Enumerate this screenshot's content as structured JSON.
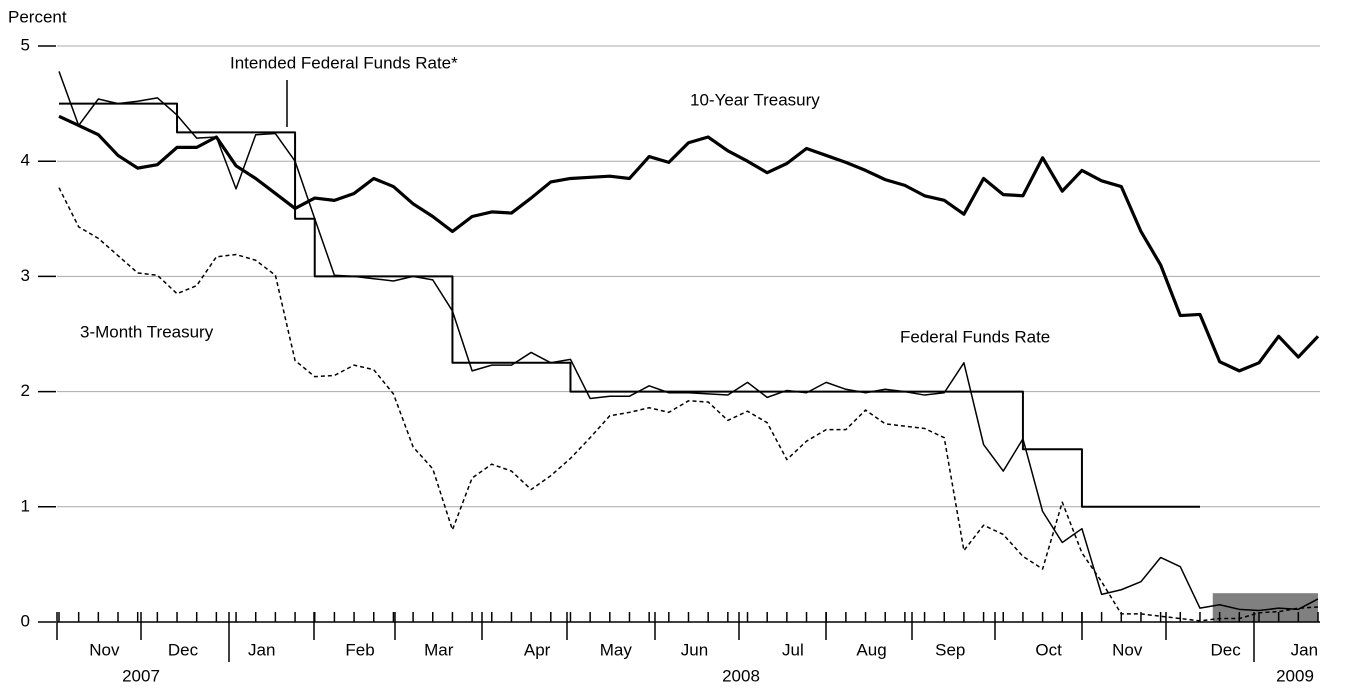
{
  "chart_data": {
    "type": "line",
    "y_label": "Percent",
    "categories": [
      null,
      null,
      "Nov",
      null,
      null,
      null,
      "Dec",
      null,
      null,
      null,
      "Jan",
      null,
      null,
      null,
      null,
      "Feb",
      null,
      null,
      null,
      "Mar",
      null,
      null,
      null,
      null,
      "Apr",
      null,
      null,
      null,
      "May",
      null,
      null,
      null,
      "Jun",
      null,
      null,
      null,
      null,
      "Jul",
      null,
      null,
      null,
      "Aug",
      null,
      null,
      null,
      "Sep",
      null,
      null,
      null,
      null,
      "Oct",
      null,
      null,
      null,
      "Nov",
      null,
      null,
      null,
      null,
      "Dec",
      null,
      null,
      null,
      "Jan",
      null
    ],
    "years": [
      "2007",
      "2008",
      "2009"
    ],
    "ylim": [
      0,
      5
    ],
    "yticks": [
      0,
      1,
      2,
      3,
      4,
      5
    ],
    "grid": true,
    "series": [
      {
        "name": "10-Year Treasury",
        "color": "#000000",
        "style": "thick",
        "values": [
          4.39,
          4.31,
          4.23,
          4.05,
          3.94,
          3.97,
          4.12,
          4.12,
          4.21,
          3.96,
          3.85,
          3.72,
          3.59,
          3.68,
          3.66,
          3.72,
          3.85,
          3.78,
          3.63,
          3.52,
          3.39,
          3.52,
          3.56,
          3.55,
          3.68,
          3.82,
          3.85,
          3.86,
          3.87,
          3.85,
          4.04,
          3.99,
          4.16,
          4.21,
          4.09,
          4.0,
          3.9,
          3.98,
          4.11,
          4.05,
          3.99,
          3.92,
          3.84,
          3.79,
          3.7,
          3.66,
          3.54,
          3.85,
          3.71,
          3.7,
          4.03,
          3.74,
          3.92,
          3.83,
          3.78,
          3.39,
          3.1,
          2.66,
          2.67,
          2.26,
          2.18,
          2.25,
          2.48,
          2.3,
          2.48
        ]
      },
      {
        "name": "Federal Funds Rate",
        "color": "#000000",
        "style": "thin",
        "values": [
          4.78,
          4.31,
          4.54,
          4.5,
          4.52,
          4.55,
          4.4,
          4.2,
          4.21,
          3.76,
          4.23,
          4.24,
          4.0,
          3.5,
          3.01,
          3.0,
          2.98,
          2.96,
          3.0,
          2.97,
          2.7,
          2.18,
          2.23,
          2.23,
          2.34,
          2.25,
          2.28,
          1.94,
          1.96,
          1.96,
          2.05,
          1.99,
          1.99,
          1.98,
          1.97,
          2.08,
          1.95,
          2.01,
          1.99,
          2.08,
          2.02,
          1.99,
          2.02,
          2.0,
          1.97,
          1.99,
          2.25,
          1.54,
          1.31,
          1.59,
          0.96,
          0.69,
          0.81,
          0.24,
          0.28,
          0.35,
          0.56,
          0.48,
          0.12,
          0.15,
          0.11,
          0.1,
          0.12,
          0.11,
          0.2
        ]
      },
      {
        "name": "3-Month Treasury",
        "color": "#000000",
        "style": "dashed",
        "values": [
          3.77,
          3.43,
          3.33,
          3.18,
          3.03,
          3.01,
          2.85,
          2.92,
          3.17,
          3.19,
          3.14,
          3.01,
          2.27,
          2.13,
          2.14,
          2.23,
          2.19,
          1.98,
          1.52,
          1.33,
          0.8,
          1.25,
          1.37,
          1.31,
          1.15,
          1.27,
          1.42,
          1.6,
          1.79,
          1.82,
          1.86,
          1.82,
          1.92,
          1.91,
          1.75,
          1.83,
          1.73,
          1.41,
          1.57,
          1.67,
          1.67,
          1.84,
          1.72,
          1.7,
          1.68,
          1.6,
          0.62,
          0.84,
          0.76,
          0.57,
          0.46,
          1.04,
          0.6,
          0.35,
          0.07,
          0.07,
          0.05,
          0.03,
          0.01,
          0.03,
          0.03,
          0.08,
          0.09,
          0.12,
          0.13
        ]
      },
      {
        "name": "Intended Federal Funds Rate*",
        "color": "#000000",
        "style": "step",
        "values": [
          4.5,
          4.5,
          4.5,
          4.5,
          4.5,
          4.5,
          4.25,
          4.25,
          4.25,
          4.25,
          4.25,
          4.25,
          3.5,
          3.0,
          3.0,
          3.0,
          3.0,
          3.0,
          3.0,
          3.0,
          2.25,
          2.25,
          2.25,
          2.25,
          2.25,
          2.25,
          2.0,
          2.0,
          2.0,
          2.0,
          2.0,
          2.0,
          2.0,
          2.0,
          2.0,
          2.0,
          2.0,
          2.0,
          2.0,
          2.0,
          2.0,
          2.0,
          2.0,
          2.0,
          2.0,
          2.0,
          2.0,
          2.0,
          2.0,
          1.5,
          1.5,
          1.5,
          1.0,
          1.0,
          1.0,
          1.0,
          1.0,
          1.0,
          1.0,
          null,
          null,
          null,
          null,
          null,
          null
        ]
      }
    ],
    "target_range": {
      "values": [
        0,
        0.25
      ],
      "start": 59,
      "color": "#808080"
    }
  }
}
